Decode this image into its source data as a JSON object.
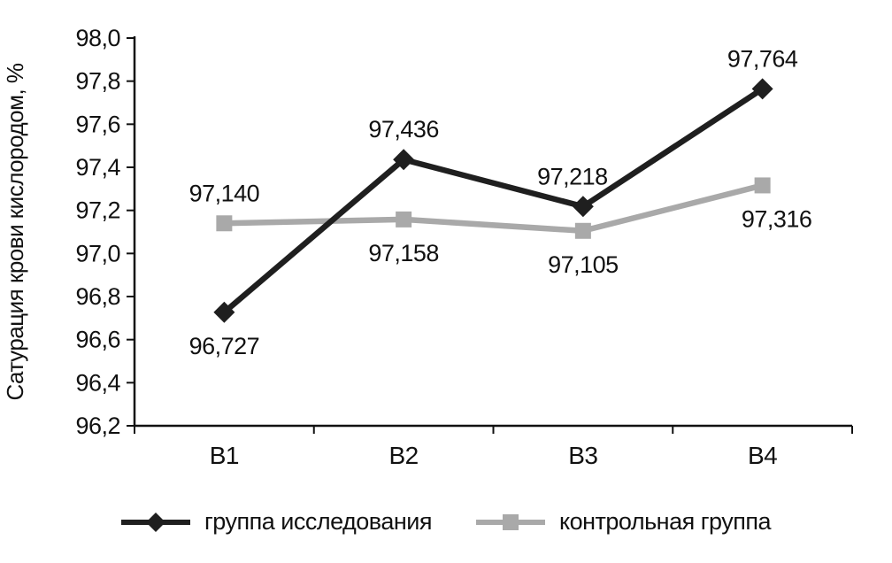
{
  "chart_data": {
    "type": "line",
    "title": "",
    "xlabel": "",
    "ylabel": "Сатурация крови кислородом, %",
    "categories": [
      "В1",
      "В2",
      "В3",
      "В4"
    ],
    "ylim": [
      96.2,
      98.0
    ],
    "ytick_step": 0.2,
    "ytick_labels": [
      "96,2",
      "96,4",
      "96,6",
      "96,8",
      "97,0",
      "97,2",
      "97,4",
      "97,6",
      "97,8",
      "98,0"
    ],
    "grid": false,
    "legend_position": "bottom",
    "series": [
      {
        "name": "группа исследования",
        "values": [
          96.727,
          97.436,
          97.218,
          97.764
        ],
        "labels": [
          "96,727",
          "97,436",
          "97,218",
          "97,764"
        ],
        "label_positions": [
          "below",
          "above",
          "above",
          "above"
        ],
        "label_dx": [
          0,
          0,
          -12,
          0
        ],
        "color": "#1f1f1f",
        "marker": "diamond"
      },
      {
        "name": "контрольная группа",
        "values": [
          97.14,
          97.158,
          97.105,
          97.316
        ],
        "labels": [
          "97,140",
          "97,158",
          "97,105",
          "97,316"
        ],
        "label_positions": [
          "above",
          "below",
          "below",
          "below"
        ],
        "label_dx": [
          0,
          0,
          0,
          16
        ],
        "color": "#a9a9a9",
        "marker": "square"
      }
    ]
  }
}
